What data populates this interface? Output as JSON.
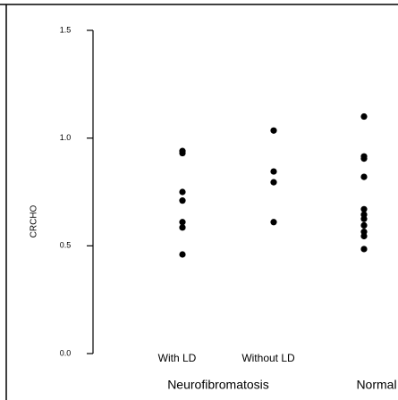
{
  "chart_data": {
    "type": "strip",
    "y_label": "CRCHO",
    "categories": [
      "With LD",
      "Without LD",
      "Normal"
    ],
    "group_label": "Neurofibromatosis",
    "values": [
      [
        0.94,
        0.93,
        0.75,
        0.71,
        0.61,
        0.585,
        0.46
      ],
      [
        1.035,
        0.845,
        0.795,
        0.61
      ],
      [
        1.1,
        0.915,
        0.905,
        0.82,
        0.67,
        0.645,
        0.625,
        0.595,
        0.565,
        0.545,
        0.485
      ]
    ],
    "color": "#000000",
    "ylim": [
      0,
      1.5
    ],
    "yticks": [
      {
        "value": 0,
        "label": "0.0"
      },
      0.5,
      {
        "value": 1,
        "label": "1.0"
      },
      1.5
    ]
  }
}
